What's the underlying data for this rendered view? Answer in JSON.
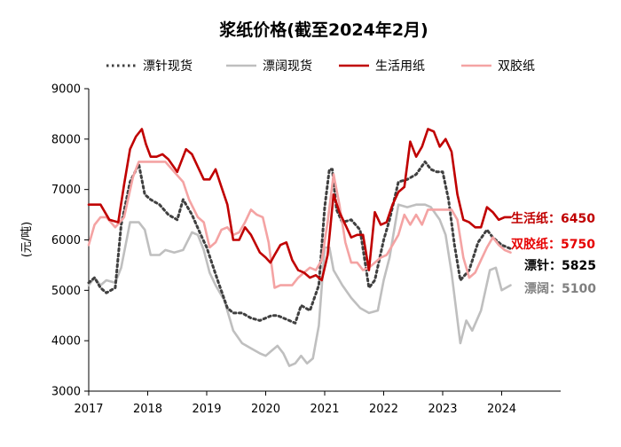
{
  "chart_data": {
    "type": "line",
    "title": "浆纸价格(截至2024年2月)",
    "ylabel": "(元/吨)",
    "xlabel": "",
    "ylim": [
      3000,
      9000
    ],
    "yticks": [
      3000,
      4000,
      5000,
      6000,
      7000,
      8000,
      9000
    ],
    "xlim": [
      2017.0,
      2025.0
    ],
    "xticks": [
      2017,
      2018,
      2019,
      2020,
      2021,
      2022,
      2023,
      2024
    ],
    "xtick_labels": [
      "2017",
      "2018",
      "2019",
      "2020",
      "2021",
      "2022",
      "2023",
      "2024"
    ],
    "grid": false,
    "legend_position": "top",
    "series": [
      {
        "name": "漂针现货",
        "color": "#404040",
        "style": "dotted",
        "x": [
          2017.0,
          2017.1,
          2017.2,
          2017.3,
          2017.45,
          2017.55,
          2017.7,
          2017.85,
          2017.95,
          2018.05,
          2018.2,
          2018.35,
          2018.5,
          2018.6,
          2018.75,
          2018.9,
          2019.0,
          2019.1,
          2019.2,
          2019.35,
          2019.45,
          2019.6,
          2019.75,
          2019.9,
          2020.0,
          2020.1,
          2020.2,
          2020.3,
          2020.4,
          2020.5,
          2020.6,
          2020.75,
          2020.9,
          2021.0,
          2021.08,
          2021.13,
          2021.2,
          2021.3,
          2021.45,
          2021.6,
          2021.75,
          2021.85,
          2022.0,
          2022.1,
          2022.25,
          2022.4,
          2022.55,
          2022.7,
          2022.8,
          2022.9,
          2023.0,
          2023.1,
          2023.2,
          2023.3,
          2023.45,
          2023.6,
          2023.75,
          2023.85,
          2024.0,
          2024.15
        ],
        "y": [
          5150,
          5250,
          5050,
          4950,
          5050,
          6300,
          7150,
          7500,
          6900,
          6800,
          6700,
          6500,
          6400,
          6800,
          6500,
          6100,
          5850,
          5500,
          5150,
          4650,
          4550,
          4550,
          4450,
          4400,
          4450,
          4500,
          4500,
          4450,
          4400,
          4350,
          4700,
          4600,
          5100,
          6650,
          7400,
          7400,
          6600,
          6350,
          6400,
          6200,
          5050,
          5200,
          6000,
          6400,
          7150,
          7200,
          7300,
          7550,
          7400,
          7350,
          7350,
          6800,
          5900,
          5200,
          5400,
          5950,
          6200,
          6050,
          5900,
          5825
        ]
      },
      {
        "name": "漂阔现货",
        "color": "#bfbfbf",
        "style": "solid",
        "x": [
          2017.0,
          2017.1,
          2017.2,
          2017.3,
          2017.45,
          2017.55,
          2017.7,
          2017.85,
          2017.95,
          2018.05,
          2018.2,
          2018.3,
          2018.45,
          2018.6,
          2018.75,
          2018.85,
          2018.95,
          2019.05,
          2019.15,
          2019.3,
          2019.45,
          2019.6,
          2019.75,
          2019.9,
          2020.0,
          2020.1,
          2020.2,
          2020.3,
          2020.4,
          2020.5,
          2020.6,
          2020.7,
          2020.8,
          2020.9,
          2021.0,
          2021.08,
          2021.15,
          2021.3,
          2021.45,
          2021.6,
          2021.75,
          2021.9,
          2022.0,
          2022.1,
          2022.25,
          2022.4,
          2022.55,
          2022.7,
          2022.8,
          2022.95,
          2023.05,
          2023.15,
          2023.22,
          2023.3,
          2023.4,
          2023.5,
          2023.65,
          2023.8,
          2023.9,
          2024.0,
          2024.15
        ],
        "y": [
          5100,
          5250,
          5100,
          5200,
          5150,
          5450,
          6350,
          6350,
          6200,
          5700,
          5700,
          5800,
          5750,
          5800,
          6150,
          6100,
          5800,
          5350,
          5100,
          4800,
          4200,
          3950,
          3850,
          3750,
          3700,
          3800,
          3900,
          3750,
          3500,
          3550,
          3700,
          3550,
          3650,
          4300,
          5850,
          5850,
          5400,
          5100,
          4850,
          4650,
          4550,
          4600,
          5200,
          5650,
          6700,
          6650,
          6700,
          6700,
          6650,
          6400,
          6100,
          5350,
          4700,
          3950,
          4400,
          4200,
          4600,
          5400,
          5450,
          5000,
          5100
        ]
      },
      {
        "name": "生活用纸",
        "color": "#c00000",
        "style": "solid",
        "x": [
          2017.0,
          2017.1,
          2017.2,
          2017.35,
          2017.5,
          2017.6,
          2017.7,
          2017.8,
          2017.9,
          2017.97,
          2018.05,
          2018.15,
          2018.25,
          2018.35,
          2018.5,
          2018.65,
          2018.75,
          2018.85,
          2018.95,
          2019.05,
          2019.15,
          2019.25,
          2019.35,
          2019.45,
          2019.55,
          2019.65,
          2019.75,
          2019.9,
          2020.0,
          2020.08,
          2020.15,
          2020.25,
          2020.35,
          2020.45,
          2020.55,
          2020.65,
          2020.75,
          2020.85,
          2020.95,
          2021.05,
          2021.15,
          2021.25,
          2021.35,
          2021.45,
          2021.55,
          2021.65,
          2021.75,
          2021.85,
          2021.95,
          2022.05,
          2022.15,
          2022.25,
          2022.35,
          2022.45,
          2022.55,
          2022.65,
          2022.75,
          2022.85,
          2022.95,
          2023.05,
          2023.15,
          2023.25,
          2023.35,
          2023.45,
          2023.55,
          2023.65,
          2023.75,
          2023.85,
          2023.95,
          2024.05,
          2024.15
        ],
        "y": [
          6700,
          6700,
          6700,
          6400,
          6350,
          7100,
          7800,
          8050,
          8200,
          7900,
          7650,
          7650,
          7700,
          7600,
          7350,
          7800,
          7700,
          7450,
          7200,
          7200,
          7400,
          7050,
          6700,
          6000,
          6000,
          6250,
          6100,
          5750,
          5650,
          5550,
          5700,
          5900,
          5950,
          5600,
          5400,
          5350,
          5250,
          5300,
          5200,
          5700,
          6900,
          6550,
          6300,
          6050,
          6100,
          6100,
          5400,
          6550,
          6300,
          6350,
          6700,
          6950,
          7050,
          7950,
          7650,
          7850,
          8200,
          8150,
          7850,
          8000,
          7750,
          6900,
          6400,
          6350,
          6250,
          6250,
          6650,
          6550,
          6400,
          6450,
          6450
        ]
      },
      {
        "name": "双胶纸",
        "color": "#f4a3a3",
        "style": "solid",
        "x": [
          2017.0,
          2017.1,
          2017.2,
          2017.3,
          2017.45,
          2017.6,
          2017.75,
          2017.85,
          2017.95,
          2018.05,
          2018.15,
          2018.3,
          2018.45,
          2018.6,
          2018.7,
          2018.85,
          2018.95,
          2019.05,
          2019.15,
          2019.25,
          2019.35,
          2019.45,
          2019.55,
          2019.65,
          2019.75,
          2019.85,
          2019.95,
          2020.05,
          2020.15,
          2020.25,
          2020.35,
          2020.45,
          2020.55,
          2020.65,
          2020.75,
          2020.85,
          2020.95,
          2021.05,
          2021.15,
          2021.25,
          2021.35,
          2021.45,
          2021.55,
          2021.65,
          2021.75,
          2021.85,
          2021.95,
          2022.05,
          2022.15,
          2022.25,
          2022.35,
          2022.45,
          2022.55,
          2022.65,
          2022.75,
          2022.85,
          2022.95,
          2023.05,
          2023.15,
          2023.25,
          2023.35,
          2023.45,
          2023.55,
          2023.65,
          2023.75,
          2023.85,
          2023.95,
          2024.05,
          2024.15
        ],
        "y": [
          5900,
          6300,
          6450,
          6450,
          6250,
          6450,
          7250,
          7550,
          7550,
          7550,
          7550,
          7550,
          7350,
          7150,
          6800,
          6450,
          6350,
          5850,
          5950,
          6200,
          6250,
          6100,
          6150,
          6350,
          6600,
          6500,
          6450,
          5950,
          5050,
          5100,
          5100,
          5100,
          5250,
          5350,
          5450,
          5400,
          5600,
          6350,
          7300,
          6700,
          5950,
          5550,
          5550,
          5400,
          5450,
          5550,
          5650,
          5700,
          5900,
          6100,
          6500,
          6300,
          6500,
          6300,
          6600,
          6600,
          6600,
          6600,
          6600,
          6400,
          5650,
          5250,
          5350,
          5600,
          5850,
          6050,
          5900,
          5800,
          5750
        ]
      }
    ],
    "annotations": [
      {
        "text": "生活纸：6450",
        "color": "#c00000",
        "bold": true
      },
      {
        "text": "双胶纸：5750",
        "color": "#e60000",
        "bold": true
      },
      {
        "text": "漂针：5825",
        "color": "#000000",
        "bold": true
      },
      {
        "text": "漂阔：5100",
        "color": "#808080",
        "bold": true
      }
    ]
  }
}
